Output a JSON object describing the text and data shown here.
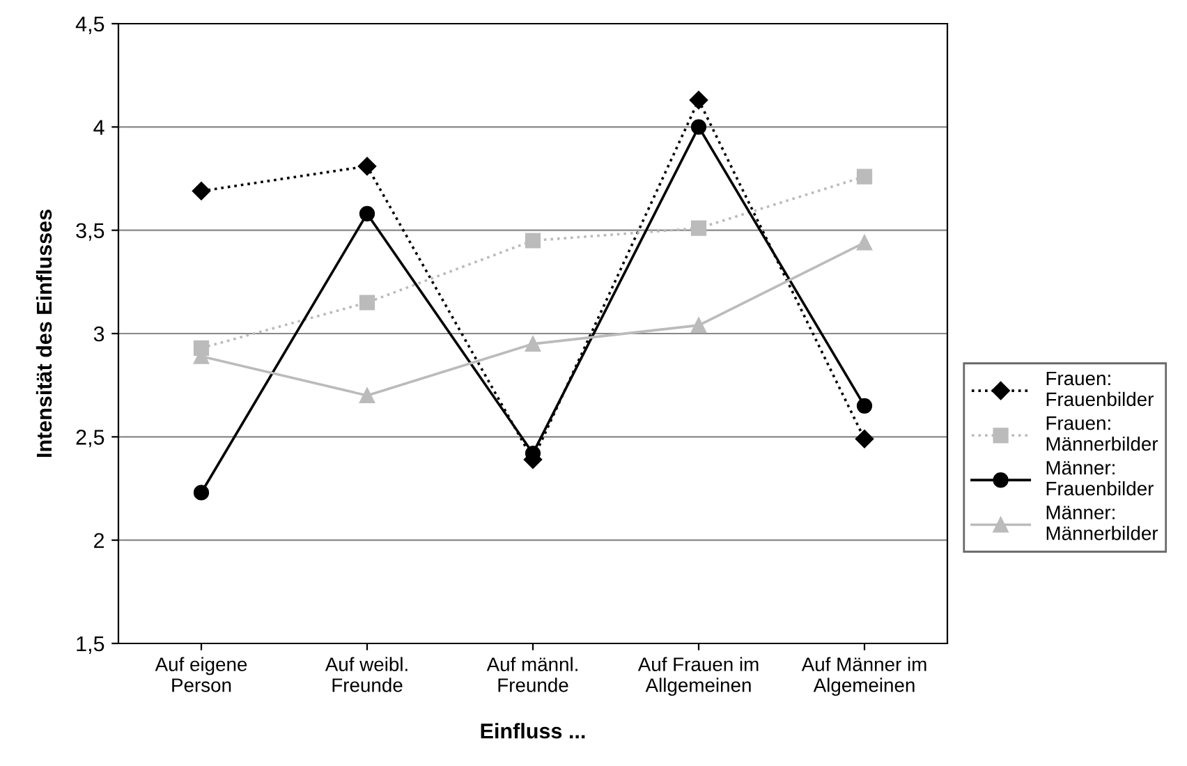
{
  "chart_data": {
    "type": "line",
    "xlabel": "Einfluss ...",
    "ylabel": "Intensität des Einflusses",
    "categories": [
      "Auf eigene\nPerson",
      "Auf weibl.\nFreunde",
      "Auf männl.\nFreunde",
      "Auf Frauen im\nAllgemeinen",
      "Auf Männer im\nAlgemeinen"
    ],
    "series": [
      {
        "name": "Frauen:\nFrauenbilder",
        "color": "#000000",
        "marker": "diamond",
        "line_style": "dotted",
        "values": [
          3.69,
          3.81,
          2.39,
          4.13,
          2.49
        ]
      },
      {
        "name": "Frauen:\nMännerbilder",
        "color": "#bbbbbb",
        "marker": "square",
        "line_style": "dotted",
        "values": [
          2.93,
          3.15,
          3.45,
          3.51,
          3.76
        ]
      },
      {
        "name": "Männer:\nFrauenbilder",
        "color": "#000000",
        "marker": "circle",
        "line_style": "solid",
        "values": [
          2.23,
          3.58,
          2.42,
          4.0,
          2.65
        ]
      },
      {
        "name": "Männer:\nMännerbilder",
        "color": "#bbbbbb",
        "marker": "triangle",
        "line_style": "solid",
        "values": [
          2.89,
          2.7,
          2.95,
          3.04,
          3.44
        ]
      }
    ],
    "ylim": [
      1.5,
      4.5
    ],
    "yticks": [
      {
        "value": 1.5,
        "label": "1,5"
      },
      2,
      {
        "value": 2.5,
        "label": "2,5"
      },
      3,
      {
        "value": 3.5,
        "label": "3,5"
      },
      4,
      {
        "value": 4.5,
        "label": "4,5"
      }
    ],
    "grid": "y",
    "legend": "right"
  }
}
